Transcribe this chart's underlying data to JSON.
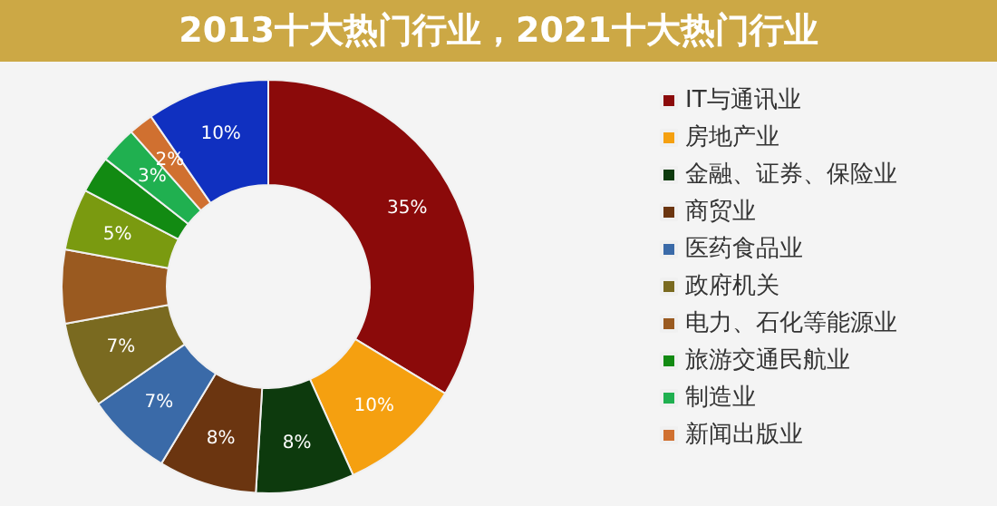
{
  "chart_data": {
    "type": "donut",
    "title": "2013十大热门行业，2021十大热门行业",
    "categories": [
      "IT与通讯业",
      "房地产业",
      "金融、证券、保险业",
      "商贸业",
      "医药食品业",
      "政府机关",
      "电力、石化等能源业",
      null,
      "旅游交通民航业",
      "制造业",
      "新闻出版业",
      null
    ],
    "values": [
      35,
      10,
      8,
      8,
      7,
      7,
      6,
      5,
      3,
      3,
      2,
      10
    ],
    "value_labels": [
      "35%",
      "10%",
      "8%",
      "8%",
      "7%",
      "7%",
      null,
      "5%",
      null,
      "3%",
      "2%",
      "10%"
    ],
    "colors": [
      "#8b0a0a",
      "#f5a010",
      "#0d3a0d",
      "#6b3510",
      "#3a6aa8",
      "#7a6a20",
      "#9a5a20",
      "#7a9a10",
      "#128a12",
      "#20b050",
      "#d07030",
      "#1030c0"
    ],
    "legend": "right"
  }
}
